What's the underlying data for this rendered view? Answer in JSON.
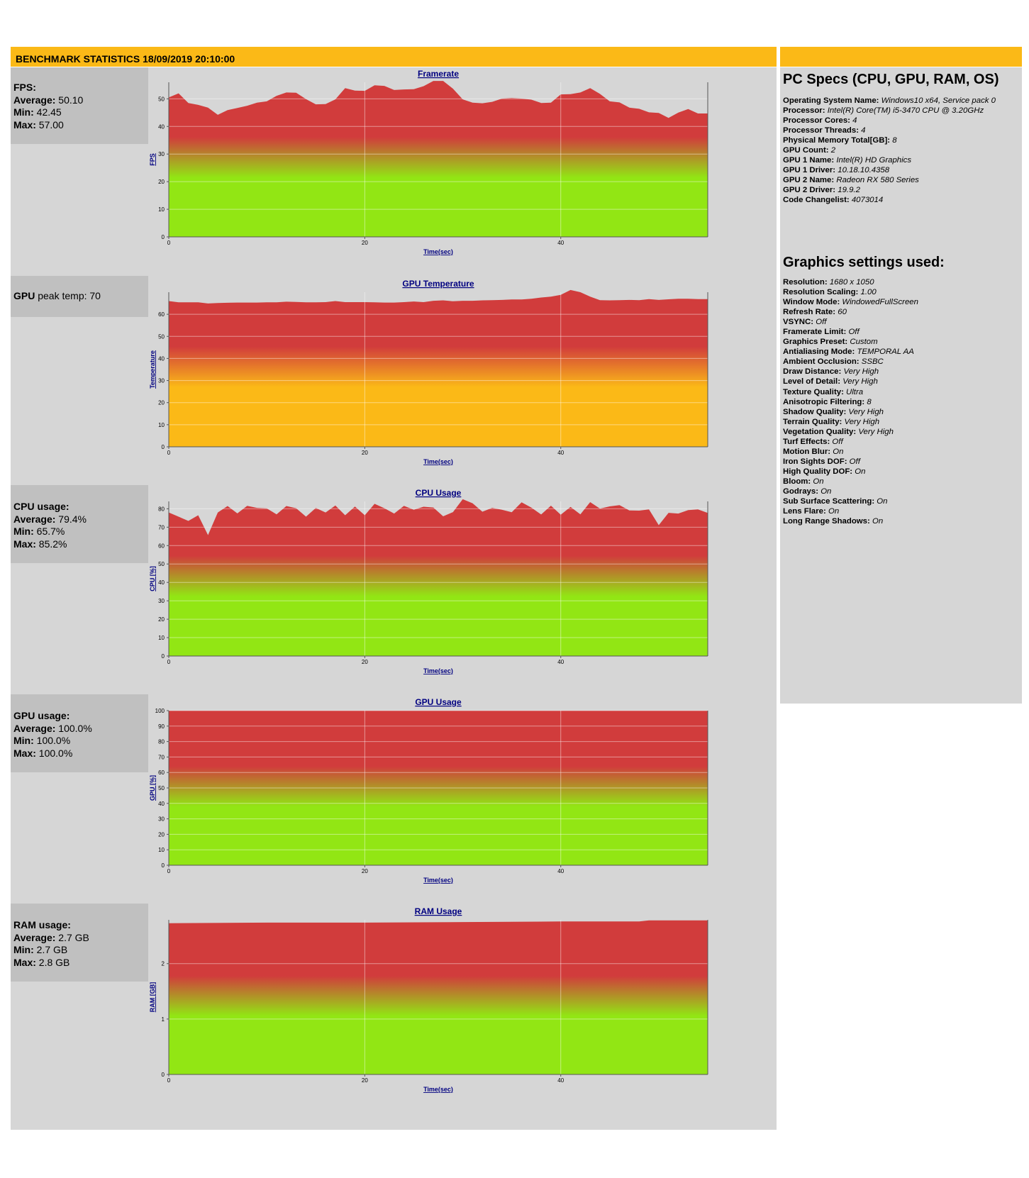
{
  "header": {
    "title": "BENCHMARK STATISTICS 18/09/2019 20:10:00"
  },
  "colors": {
    "header": "#fbb917",
    "panel": "#d6d6d6",
    "stat_box": "#c0c0c0",
    "red": "#d13c3c",
    "green": "#92e614",
    "orange": "#fbb917"
  },
  "stats": {
    "fps": {
      "label": "FPS:",
      "average_label": "Average:",
      "average": "50.10",
      "min_label": "Min:",
      "min": "42.45",
      "max_label": "Max:",
      "max": "57.00"
    },
    "gpu_temp": {
      "label": "GPU",
      "text": "peak temp: 70"
    },
    "cpu": {
      "label": "CPU usage:",
      "average_label": "Average:",
      "average": "79.4%",
      "min_label": "Min:",
      "min": "65.7%",
      "max_label": "Max:",
      "max": "85.2%"
    },
    "gpu": {
      "label": "GPU usage:",
      "average_label": "Average:",
      "average": "100.0%",
      "min_label": "Min:",
      "min": "100.0%",
      "max_label": "Max:",
      "max": "100.0%"
    },
    "ram": {
      "label": "RAM usage:",
      "average_label": "Average:",
      "average": "2.7 GB",
      "min_label": "Min:",
      "min": "2.7 GB",
      "max_label": "Max:",
      "max": "2.8 GB"
    }
  },
  "pc_specs": {
    "title": "PC Specs (CPU, GPU, RAM, OS)",
    "items": [
      {
        "key": "Operating System Name:",
        "value": "Windows10 x64, Service pack 0"
      },
      {
        "key": "Processor:",
        "value": "Intel(R) Core(TM) i5-3470 CPU @ 3.20GHz"
      },
      {
        "key": "Processor Cores:",
        "value": "4"
      },
      {
        "key": "Processor Threads:",
        "value": "4"
      },
      {
        "key": "Physical Memory Total[GB]:",
        "value": "8"
      },
      {
        "key": "GPU Count:",
        "value": "2"
      },
      {
        "key": "GPU 1 Name:",
        "value": "Intel(R) HD Graphics"
      },
      {
        "key": "GPU 1 Driver:",
        "value": "10.18.10.4358"
      },
      {
        "key": "GPU 2 Name:",
        "value": "Radeon RX 580 Series"
      },
      {
        "key": "GPU 2 Driver:",
        "value": "19.9.2"
      },
      {
        "key": "Code Changelist:",
        "value": "4073014"
      }
    ]
  },
  "graphics_settings": {
    "title": "Graphics settings used:",
    "items": [
      {
        "key": "Resolution:",
        "value": "1680 x 1050"
      },
      {
        "key": "Resolution Scaling:",
        "value": "1.00"
      },
      {
        "key": "Window Mode:",
        "value": "WindowedFullScreen"
      },
      {
        "key": "Refresh Rate:",
        "value": "60"
      },
      {
        "key": "VSYNC:",
        "value": "Off"
      },
      {
        "key": "Framerate Limit:",
        "value": "Off"
      },
      {
        "key": "Graphics Preset:",
        "value": "Custom"
      },
      {
        "key": "Antialiasing Mode:",
        "value": "TEMPORAL AA"
      },
      {
        "key": "Ambient Occlusion:",
        "value": "SSBC"
      },
      {
        "key": "Draw Distance:",
        "value": "Very High"
      },
      {
        "key": "Level of Detail:",
        "value": "Very High"
      },
      {
        "key": "Texture Quality:",
        "value": "Ultra"
      },
      {
        "key": "Anisotropic Filtering:",
        "value": "8"
      },
      {
        "key": "Shadow Quality:",
        "value": "Very High"
      },
      {
        "key": "Terrain Quality:",
        "value": "Very High"
      },
      {
        "key": "Vegetation Quality:",
        "value": "Very High"
      },
      {
        "key": "Turf Effects:",
        "value": "Off"
      },
      {
        "key": "Motion Blur:",
        "value": "On"
      },
      {
        "key": "Iron Sights DOF:",
        "value": "Off"
      },
      {
        "key": "High Quality DOF:",
        "value": "On"
      },
      {
        "key": "Bloom:",
        "value": "On"
      },
      {
        "key": "Godrays:",
        "value": "On"
      },
      {
        "key": "Sub Surface Scattering:",
        "value": "On"
      },
      {
        "key": "Lens Flare:",
        "value": "On"
      },
      {
        "key": "Long Range Shadows:",
        "value": "On"
      }
    ]
  },
  "chart_data": [
    {
      "type": "area",
      "title": "Framerate",
      "xlabel": "Time(sec)",
      "ylabel": "FPS",
      "xlim": [
        0,
        55
      ],
      "ylim": [
        0,
        56
      ],
      "xticks": [
        0,
        20,
        40
      ],
      "yticks": [
        0,
        10,
        20,
        30,
        40,
        50
      ],
      "gradient": [
        "red",
        "red",
        "green",
        "green"
      ],
      "x": [
        0,
        1,
        2,
        3,
        4,
        5,
        6,
        7,
        8,
        9,
        10,
        11,
        12,
        13,
        14,
        15,
        16,
        17,
        18,
        19,
        20,
        21,
        22,
        23,
        24,
        25,
        26,
        27,
        28,
        29,
        30,
        31,
        32,
        33,
        34,
        35,
        36,
        37,
        38,
        39,
        40,
        41,
        42,
        43,
        44,
        45,
        46,
        47,
        48,
        49,
        50,
        51,
        52,
        53,
        54,
        55
      ],
      "values": [
        50.5,
        52,
        48.5,
        47.8,
        46.8,
        44.2,
        45.9,
        46.7,
        47.5,
        48.6,
        49.1,
        51.1,
        52.3,
        52.2,
        49.9,
        48,
        48.1,
        49.8,
        53.9,
        53,
        52.9,
        54.9,
        54.7,
        53.2,
        53.4,
        53.5,
        54.6,
        56.5,
        56.5,
        53.7,
        49.8,
        48.6,
        48.4,
        48.9,
        50.1,
        50.3,
        50.1,
        49.7,
        48.5,
        48.6,
        51.6,
        51.7,
        52.3,
        53.9,
        51.8,
        49.1,
        48.7,
        46.8,
        46.4,
        45.1,
        44.9,
        43.1,
        45,
        46.3,
        44.7,
        44.7
      ]
    },
    {
      "type": "area",
      "title": "GPU Temperature",
      "xlabel": "Time(sec)",
      "ylabel": "Temperature",
      "xlim": [
        0,
        55
      ],
      "ylim": [
        0,
        70
      ],
      "xticks": [
        0,
        20,
        40
      ],
      "yticks": [
        0,
        10,
        20,
        30,
        40,
        50,
        60
      ],
      "gradient": [
        "red",
        "red",
        "orange",
        "orange"
      ],
      "x": [
        0,
        1,
        2,
        3,
        4,
        5,
        6,
        7,
        8,
        9,
        10,
        11,
        12,
        13,
        14,
        15,
        16,
        17,
        18,
        19,
        20,
        21,
        22,
        23,
        24,
        25,
        26,
        27,
        28,
        29,
        30,
        31,
        32,
        33,
        34,
        35,
        36,
        37,
        38,
        39,
        40,
        41,
        42,
        43,
        44,
        45,
        46,
        47,
        48,
        49,
        50,
        51,
        52,
        53,
        54,
        55
      ],
      "values": [
        66,
        65.4,
        65.4,
        65.4,
        64.9,
        65.1,
        65.2,
        65.3,
        65.3,
        65.3,
        65.4,
        65.4,
        65.7,
        65.6,
        65.4,
        65.4,
        65.5,
        66,
        65.5,
        65.5,
        65.5,
        65.4,
        65.3,
        65.3,
        65.5,
        65.8,
        65.5,
        66.1,
        66.3,
        65.9,
        66.1,
        66.1,
        66.3,
        66.4,
        66.5,
        66.7,
        66.7,
        67,
        67.6,
        68,
        68.8,
        71,
        70,
        68,
        66.4,
        66.3,
        66.4,
        66.5,
        66.4,
        66.9,
        66.5,
        66.8,
        67,
        67,
        66.9,
        66.9
      ]
    },
    {
      "type": "area",
      "title": "CPU Usage",
      "xlabel": "Time(sec)",
      "ylabel": "CPU [%]",
      "xlim": [
        0,
        55
      ],
      "ylim": [
        0,
        84
      ],
      "xticks": [
        0,
        20,
        40
      ],
      "yticks": [
        0,
        10,
        20,
        30,
        40,
        50,
        60,
        70,
        80
      ],
      "gradient": [
        "red",
        "red",
        "green",
        "green"
      ],
      "x": [
        0,
        1,
        2,
        3,
        4,
        5,
        6,
        7,
        8,
        9,
        10,
        11,
        12,
        13,
        14,
        15,
        16,
        17,
        18,
        19,
        20,
        21,
        22,
        23,
        24,
        25,
        26,
        27,
        28,
        29,
        30,
        31,
        32,
        33,
        34,
        35,
        36,
        37,
        38,
        39,
        40,
        41,
        42,
        43,
        44,
        45,
        46,
        47,
        48,
        49,
        50,
        51,
        52,
        53,
        54,
        55
      ],
      "values": [
        78,
        75.7,
        73.4,
        76.5,
        65.7,
        78,
        81.5,
        77.5,
        81.6,
        80.5,
        80.2,
        77,
        81.5,
        80.3,
        75.7,
        80.4,
        78,
        81.8,
        76.5,
        81.2,
        76.5,
        82.7,
        80.3,
        77.4,
        81.6,
        79.5,
        81.1,
        80.7,
        75.9,
        78.2,
        85.2,
        83,
        78.4,
        80.5,
        79.5,
        78.1,
        83.5,
        80.6,
        76.9,
        81.7,
        76.8,
        81,
        77,
        83.6,
        80.1,
        81.3,
        82,
        79.1,
        79,
        79.7,
        71.1,
        77.8,
        77.4,
        79.3,
        79.7,
        77.7
      ]
    },
    {
      "type": "area",
      "title": "GPU Usage",
      "xlabel": "Time(sec)",
      "ylabel": "GPU [%]",
      "xlim": [
        0,
        55
      ],
      "ylim": [
        0,
        100
      ],
      "xticks": [
        0,
        20,
        40
      ],
      "yticks": [
        0,
        10,
        20,
        30,
        40,
        50,
        60,
        70,
        80,
        90,
        100
      ],
      "gradient": [
        "red",
        "red",
        "green",
        "green"
      ],
      "x": [
        0,
        55
      ],
      "values": [
        100,
        100
      ]
    },
    {
      "type": "area",
      "title": "RAM Usage",
      "xlabel": "Time(sec)",
      "ylabel": "RAM [GB]",
      "xlim": [
        0,
        55
      ],
      "ylim": [
        0,
        2.79
      ],
      "xticks": [
        0,
        20,
        40
      ],
      "yticks": [
        0,
        1,
        2
      ],
      "gradient": [
        "red",
        "red",
        "green",
        "green"
      ],
      "x": [
        0,
        10,
        20,
        30,
        40,
        48,
        49,
        55
      ],
      "values": [
        2.73,
        2.74,
        2.74,
        2.75,
        2.76,
        2.76,
        2.78,
        2.78
      ]
    }
  ]
}
